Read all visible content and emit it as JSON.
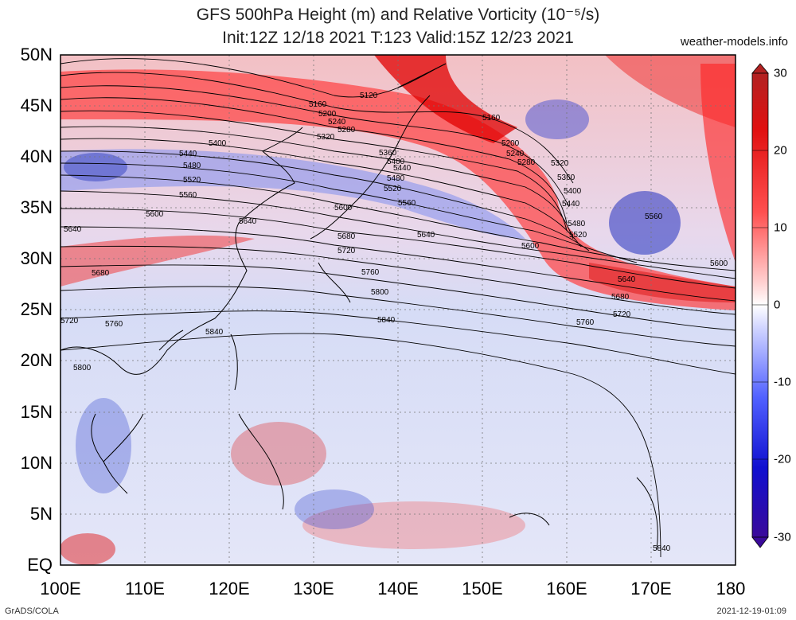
{
  "title_line1": "GFS 500hPa Height (m) and Relative Vorticity (10⁻⁵/s)",
  "title_line2": "Init:12Z 12/18 2021 T:123 Valid:15Z 12/23 2021",
  "site": "weather-models.info",
  "credit_left": "GrADS/COLA",
  "credit_right": "2021-12-19-01:09",
  "lat_labels": [
    "50N",
    "45N",
    "40N",
    "35N",
    "30N",
    "25N",
    "20N",
    "15N",
    "10N",
    "5N",
    "EQ"
  ],
  "lon_labels": [
    "100E",
    "110E",
    "120E",
    "130E",
    "140E",
    "150E",
    "160E",
    "170E",
    "180"
  ],
  "colorbar": {
    "labels": [
      "30",
      "20",
      "10",
      "0",
      "-10",
      "-20",
      "-30"
    ],
    "colors": [
      "#b22222",
      "#e01010",
      "#ff5050",
      "#ffb0b0",
      "#ffffff",
      "#b0b8ff",
      "#5060ff",
      "#1010d0",
      "#3a0a9a"
    ]
  },
  "contours": [
    {
      "value": "5160",
      "label": "5160"
    },
    {
      "value": "5200",
      "label": "5200"
    },
    {
      "value": "5240",
      "label": "5240"
    },
    {
      "value": "5280",
      "label": "5280"
    },
    {
      "value": "5320",
      "label": "5320"
    },
    {
      "value": "5360",
      "label": "5360"
    },
    {
      "value": "5400",
      "label": "5400"
    },
    {
      "value": "5440",
      "label": "5440"
    },
    {
      "value": "5480",
      "label": "5480"
    },
    {
      "value": "5520",
      "label": "5520"
    },
    {
      "value": "5560",
      "label": "5560"
    },
    {
      "value": "5600",
      "label": "5600"
    },
    {
      "value": "5640",
      "label": "5640"
    },
    {
      "value": "5680",
      "label": "5680"
    },
    {
      "value": "5720",
      "label": "5720"
    },
    {
      "value": "5760",
      "label": "5760"
    },
    {
      "value": "5800",
      "label": "5800"
    },
    {
      "value": "5840",
      "label": "5840"
    }
  ],
  "extra_labels": {
    "l5120": "5120",
    "l5160b": "5160",
    "l5200b": "5200",
    "l5240b": "5240",
    "l5280b": "5280",
    "l5320b": "5320",
    "l5360b": "5360",
    "l5400b": "5400",
    "l5440b": "5440",
    "l5480b": "5480",
    "l5520b": "5520",
    "l5560b": "5560",
    "l5600b": "5600",
    "l5600c": "5600",
    "l5640b": "5640",
    "l5640c": "5640",
    "l5680b": "5680",
    "l5680c": "5680",
    "l5720b": "5720",
    "l5720c": "5720",
    "l5760b": "5760",
    "l5760c": "5760",
    "l5840b": "5840",
    "l5840c": "5840",
    "l5800b": "5800",
    "l5400c": "5400",
    "l5440c": "5440",
    "l5480c": "5480",
    "l5520c": "5520",
    "l5560c": "5560"
  }
}
